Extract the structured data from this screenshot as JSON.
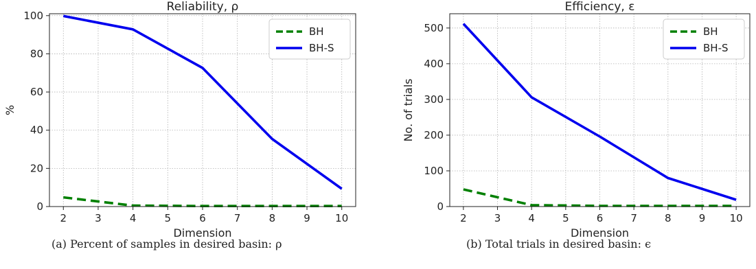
{
  "chart_data": [
    {
      "type": "line",
      "title": "Reliability, ρ",
      "xlabel": "Dimension",
      "ylabel": "%",
      "x": [
        2,
        4,
        6,
        8,
        10
      ],
      "xticks": [
        2,
        3,
        4,
        5,
        6,
        7,
        8,
        9,
        10
      ],
      "yticks": [
        0,
        20,
        40,
        60,
        80,
        100
      ],
      "xlim": [
        1.6,
        10.4
      ],
      "ylim": [
        0,
        101
      ],
      "grid": true,
      "legend_position": "top-right",
      "series": [
        {
          "name": "BH",
          "values": [
            4.8,
            0.5,
            0.3,
            0.3,
            0.3
          ],
          "color": "#008000",
          "style": "dashed"
        },
        {
          "name": "BH-S",
          "values": [
            99.8,
            92.8,
            72.6,
            35.4,
            9.3
          ],
          "color": "#0000ee",
          "style": "solid"
        }
      ],
      "caption": "(a) Percent of samples in desired basin: ρ"
    },
    {
      "type": "line",
      "title": "Efficiency, ε",
      "xlabel": "Dimension",
      "ylabel": "No. of trials",
      "x": [
        2,
        4,
        6,
        8,
        10
      ],
      "xticks": [
        2,
        3,
        4,
        5,
        6,
        7,
        8,
        9,
        10
      ],
      "yticks": [
        0,
        100,
        200,
        300,
        400,
        500
      ],
      "xlim": [
        1.6,
        10.4
      ],
      "ylim": [
        0,
        540
      ],
      "grid": true,
      "legend_position": "top-right",
      "series": [
        {
          "name": "BH",
          "values": [
            48,
            4,
            2,
            2,
            2
          ],
          "color": "#008000",
          "style": "dashed"
        },
        {
          "name": "BH-S",
          "values": [
            512,
            306,
            196,
            80,
            19
          ],
          "color": "#0000ee",
          "style": "solid"
        }
      ],
      "caption": "(b) Total trials in desired basin: ϵ"
    }
  ]
}
